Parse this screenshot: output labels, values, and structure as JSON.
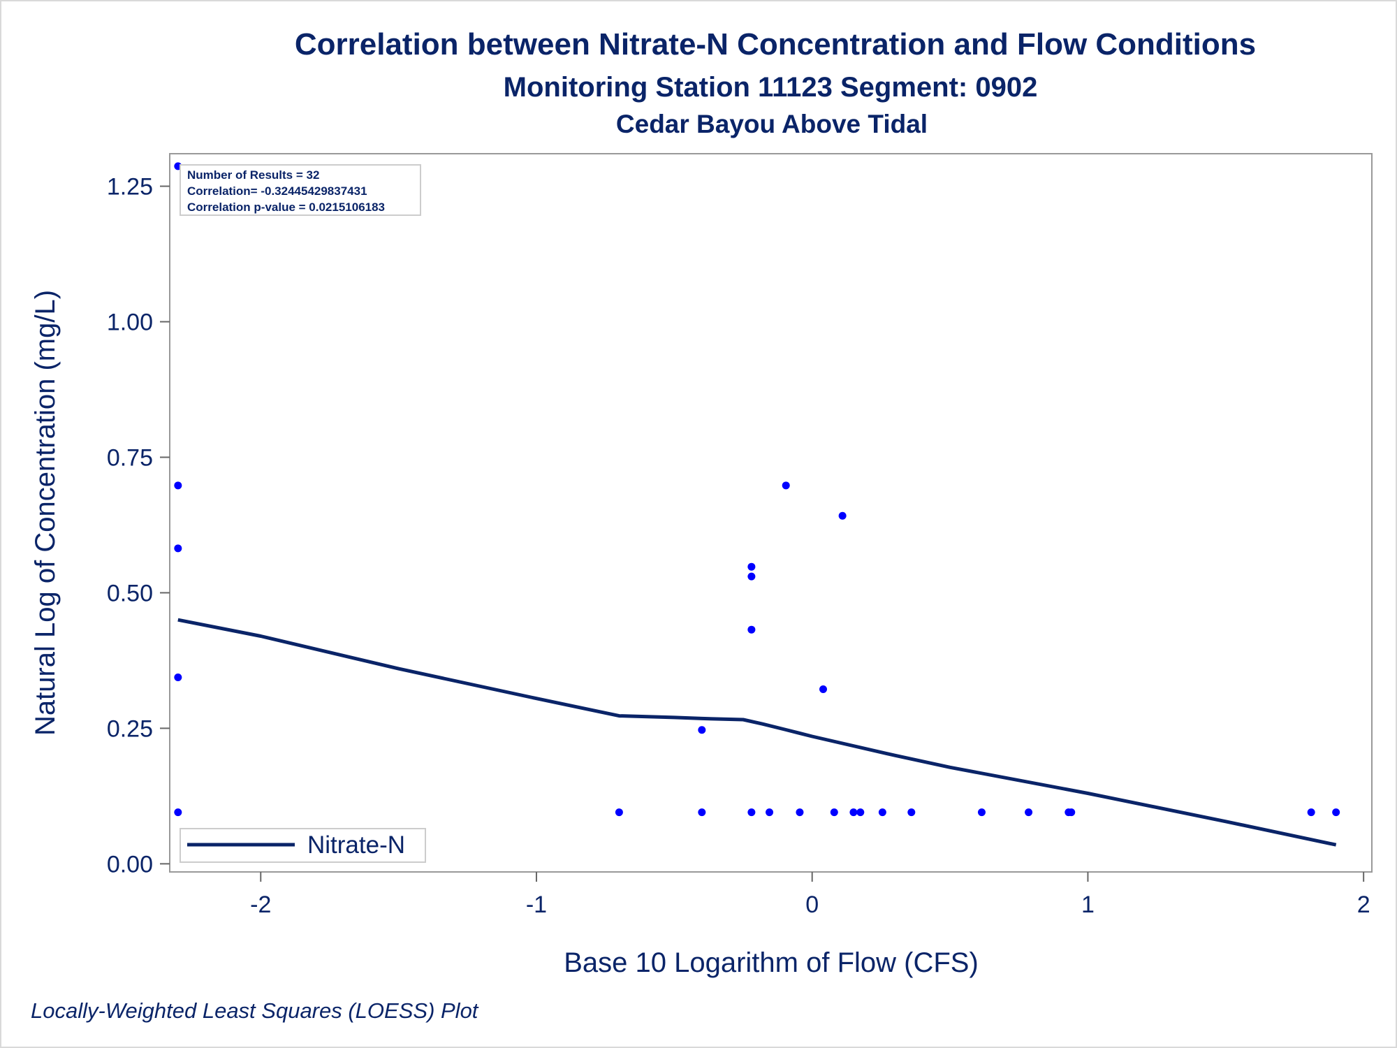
{
  "chart_data": {
    "type": "scatter",
    "title": "Correlation between Nitrate-N Concentration and Flow Conditions",
    "subtitle": "Monitoring Station 11123 Segment: 0902",
    "subtitle2": "Cedar Bayou Above Tidal",
    "xlabel": "Base 10 Logarithm of Flow (CFS)",
    "ylabel": "Natural Log of Concentration (mg/L)",
    "xlim": [
      -2.33,
      2.03
    ],
    "ylim": [
      -0.015,
      1.31
    ],
    "xticks": [
      -2,
      -1,
      0,
      1,
      2
    ],
    "xtick_labels": [
      "-2",
      "-1",
      "0",
      "1",
      "2"
    ],
    "yticks": [
      0.0,
      0.25,
      0.5,
      0.75,
      1.0,
      1.25
    ],
    "ytick_labels": [
      "0.00",
      "0.25",
      "0.50",
      "0.75",
      "1.00",
      "1.25"
    ],
    "grid": false,
    "stats": {
      "line1": "Number of Results = 32",
      "line2": "Correlation= -0.32445429837431",
      "line3": "Correlation p-value = 0.0215106183"
    },
    "legend": {
      "position": "bottom-left",
      "entries": [
        "Nitrate-N"
      ]
    },
    "series": [
      {
        "kind": "scatter",
        "color": "#0000ff",
        "points": [
          [
            -2.3,
            1.287
          ],
          [
            -2.3,
            0.698
          ],
          [
            -2.3,
            0.582
          ],
          [
            -2.3,
            0.344
          ],
          [
            -2.3,
            0.095
          ],
          [
            -0.7,
            0.095
          ],
          [
            -0.4,
            0.247
          ],
          [
            -0.4,
            0.095
          ],
          [
            -0.22,
            0.548
          ],
          [
            -0.22,
            0.53
          ],
          [
            -0.22,
            0.432
          ],
          [
            -0.22,
            0.095
          ],
          [
            -0.155,
            0.095
          ],
          [
            -0.095,
            0.698
          ],
          [
            -0.045,
            0.095
          ],
          [
            0.04,
            0.322
          ],
          [
            0.08,
            0.095
          ],
          [
            0.11,
            0.642
          ],
          [
            0.15,
            0.095
          ],
          [
            0.175,
            0.095
          ],
          [
            0.255,
            0.095
          ],
          [
            0.36,
            0.095
          ],
          [
            0.615,
            0.095
          ],
          [
            0.785,
            0.095
          ],
          [
            0.93,
            0.095
          ],
          [
            0.94,
            0.095
          ],
          [
            1.81,
            0.095
          ],
          [
            1.9,
            0.095
          ]
        ]
      },
      {
        "name": "Nitrate-N",
        "kind": "line",
        "color": "#0a2468",
        "points": [
          [
            -2.3,
            0.45
          ],
          [
            -2.0,
            0.42
          ],
          [
            -1.5,
            0.36
          ],
          [
            -1.0,
            0.305
          ],
          [
            -0.7,
            0.273
          ],
          [
            -0.5,
            0.27
          ],
          [
            -0.4,
            0.268
          ],
          [
            -0.25,
            0.266
          ],
          [
            -0.18,
            0.258
          ],
          [
            -0.1,
            0.248
          ],
          [
            0.0,
            0.235
          ],
          [
            0.3,
            0.2
          ],
          [
            0.5,
            0.178
          ],
          [
            1.0,
            0.13
          ],
          [
            1.5,
            0.078
          ],
          [
            1.9,
            0.035
          ]
        ]
      }
    ],
    "footnote": "Locally-Weighted Least Squares (LOESS) Plot"
  }
}
